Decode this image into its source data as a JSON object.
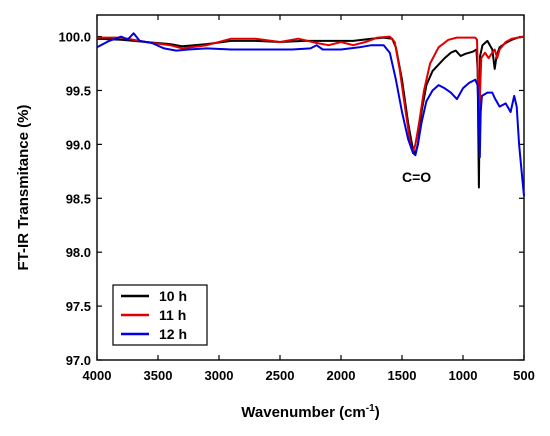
{
  "chart_data": {
    "type": "line",
    "xlabel": "Wavenumber (cm",
    "xlabel_sup": "-1",
    "xlabel_end": ")",
    "ylabel": "FT-IR Transmitance (%)",
    "xlim": [
      4000,
      500
    ],
    "ylim": [
      97.0,
      100.2
    ],
    "x_reversed": true,
    "x_ticks": [
      {
        "value": 4000,
        "label": "4000"
      },
      {
        "value": 3500,
        "label": "3500"
      },
      {
        "value": 3000,
        "label": "3000"
      },
      {
        "value": 2500,
        "label": "2500"
      },
      {
        "value": 2000,
        "label": "2000"
      },
      {
        "value": 1500,
        "label": "1500"
      },
      {
        "value": 1000,
        "label": "1000"
      },
      {
        "value": 500,
        "label": "500"
      }
    ],
    "y_ticks": [
      {
        "value": 97.0,
        "label": "97.0"
      },
      {
        "value": 97.5,
        "label": "97.5"
      },
      {
        "value": 98.0,
        "label": "98.0"
      },
      {
        "value": 98.5,
        "label": "98.5"
      },
      {
        "value": 99.0,
        "label": "99.0"
      },
      {
        "value": 99.5,
        "label": "99.5"
      },
      {
        "value": 100.0,
        "label": "100.0"
      }
    ],
    "legend_position": "bottom-left",
    "annotations": [
      {
        "text": "C=O",
        "x": 1500,
        "y": 98.65
      }
    ],
    "series": [
      {
        "name": "10 h",
        "color": "#000000",
        "points": [
          [
            4000,
            99.98
          ],
          [
            3800,
            99.97
          ],
          [
            3600,
            99.95
          ],
          [
            3400,
            99.93
          ],
          [
            3300,
            99.91
          ],
          [
            3100,
            99.93
          ],
          [
            2900,
            99.96
          ],
          [
            2700,
            99.96
          ],
          [
            2500,
            99.95
          ],
          [
            2300,
            99.96
          ],
          [
            2100,
            99.96
          ],
          [
            1900,
            99.96
          ],
          [
            1750,
            99.98
          ],
          [
            1650,
            99.99
          ],
          [
            1580,
            99.98
          ],
          [
            1550,
            99.9
          ],
          [
            1500,
            99.6
          ],
          [
            1450,
            99.2
          ],
          [
            1410,
            98.95
          ],
          [
            1390,
            98.92
          ],
          [
            1370,
            99.0
          ],
          [
            1340,
            99.3
          ],
          [
            1300,
            99.55
          ],
          [
            1250,
            99.68
          ],
          [
            1200,
            99.74
          ],
          [
            1150,
            99.8
          ],
          [
            1100,
            99.85
          ],
          [
            1060,
            99.87
          ],
          [
            1020,
            99.82
          ],
          [
            980,
            99.84
          ],
          [
            920,
            99.86
          ],
          [
            890,
            99.88
          ],
          [
            880,
            99.7
          ],
          [
            870,
            98.6
          ],
          [
            860,
            99.82
          ],
          [
            840,
            99.92
          ],
          [
            800,
            99.96
          ],
          [
            760,
            99.88
          ],
          [
            740,
            99.7
          ],
          [
            725,
            99.82
          ],
          [
            700,
            99.9
          ],
          [
            650,
            99.94
          ],
          [
            600,
            99.97
          ],
          [
            550,
            99.99
          ],
          [
            500,
            100.0
          ]
        ]
      },
      {
        "name": "11 h",
        "color": "#e00000",
        "points": [
          [
            4000,
            99.99
          ],
          [
            3800,
            99.99
          ],
          [
            3600,
            99.95
          ],
          [
            3400,
            99.92
          ],
          [
            3300,
            99.89
          ],
          [
            3100,
            99.92
          ],
          [
            2900,
            99.98
          ],
          [
            2700,
            99.98
          ],
          [
            2500,
            99.95
          ],
          [
            2350,
            99.98
          ],
          [
            2200,
            99.94
          ],
          [
            2100,
            99.92
          ],
          [
            2000,
            99.95
          ],
          [
            1900,
            99.92
          ],
          [
            1800,
            99.95
          ],
          [
            1700,
            99.99
          ],
          [
            1600,
            100.0
          ],
          [
            1560,
            99.95
          ],
          [
            1520,
            99.7
          ],
          [
            1470,
            99.3
          ],
          [
            1430,
            99.0
          ],
          [
            1410,
            98.93
          ],
          [
            1390,
            99.0
          ],
          [
            1360,
            99.2
          ],
          [
            1320,
            99.5
          ],
          [
            1270,
            99.75
          ],
          [
            1200,
            99.9
          ],
          [
            1120,
            99.97
          ],
          [
            1050,
            99.99
          ],
          [
            960,
            99.99
          ],
          [
            900,
            99.99
          ],
          [
            885,
            99.97
          ],
          [
            875,
            99.5
          ],
          [
            868,
            99.18
          ],
          [
            860,
            99.5
          ],
          [
            850,
            99.8
          ],
          [
            820,
            99.85
          ],
          [
            790,
            99.8
          ],
          [
            760,
            99.85
          ],
          [
            740,
            99.88
          ],
          [
            720,
            99.8
          ],
          [
            700,
            99.88
          ],
          [
            650,
            99.95
          ],
          [
            600,
            99.98
          ],
          [
            500,
            100.0
          ]
        ]
      },
      {
        "name": "12 h",
        "color": "#0000e0",
        "points": [
          [
            4000,
            99.9
          ],
          [
            3900,
            99.96
          ],
          [
            3800,
            100.0
          ],
          [
            3750,
            99.97
          ],
          [
            3700,
            100.03
          ],
          [
            3650,
            99.96
          ],
          [
            3550,
            99.94
          ],
          [
            3450,
            99.89
          ],
          [
            3350,
            99.87
          ],
          [
            3250,
            99.88
          ],
          [
            3100,
            99.89
          ],
          [
            2900,
            99.88
          ],
          [
            2700,
            99.88
          ],
          [
            2500,
            99.88
          ],
          [
            2400,
            99.88
          ],
          [
            2250,
            99.89
          ],
          [
            2200,
            99.92
          ],
          [
            2150,
            99.88
          ],
          [
            2000,
            99.88
          ],
          [
            1850,
            99.9
          ],
          [
            1750,
            99.92
          ],
          [
            1650,
            99.92
          ],
          [
            1600,
            99.85
          ],
          [
            1550,
            99.6
          ],
          [
            1500,
            99.3
          ],
          [
            1450,
            99.05
          ],
          [
            1410,
            98.92
          ],
          [
            1390,
            98.9
          ],
          [
            1370,
            99.0
          ],
          [
            1340,
            99.2
          ],
          [
            1300,
            99.4
          ],
          [
            1250,
            99.5
          ],
          [
            1200,
            99.55
          ],
          [
            1150,
            99.52
          ],
          [
            1100,
            99.48
          ],
          [
            1050,
            99.42
          ],
          [
            1000,
            99.52
          ],
          [
            950,
            99.57
          ],
          [
            900,
            99.6
          ],
          [
            880,
            99.55
          ],
          [
            870,
            99.2
          ],
          [
            862,
            98.88
          ],
          [
            855,
            99.3
          ],
          [
            845,
            99.45
          ],
          [
            800,
            99.48
          ],
          [
            760,
            99.48
          ],
          [
            740,
            99.43
          ],
          [
            700,
            99.35
          ],
          [
            650,
            99.38
          ],
          [
            610,
            99.3
          ],
          [
            580,
            99.45
          ],
          [
            560,
            99.35
          ],
          [
            540,
            99.0
          ],
          [
            520,
            98.75
          ],
          [
            500,
            98.52
          ]
        ]
      }
    ]
  }
}
